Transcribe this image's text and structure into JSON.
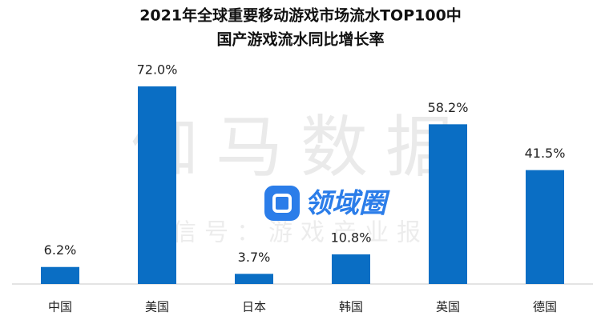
{
  "chart_data": {
    "type": "bar",
    "title": "2021年全球重要移动游戏市场流水TOP100中",
    "subtitle": "国产游戏流水同比增长率",
    "categories": [
      "中国",
      "美国",
      "日本",
      "韩国",
      "英国",
      "德国"
    ],
    "values": [
      6.2,
      72.0,
      3.7,
      10.8,
      58.2,
      41.5
    ],
    "value_labels": [
      "6.2%",
      "72.0%",
      "3.7%",
      "10.8%",
      "58.2%",
      "41.5%"
    ],
    "color": "#0a6ec4",
    "watermarks": [
      "伽马数据",
      "微信号：游戏产业报告",
      "领域圈"
    ]
  }
}
